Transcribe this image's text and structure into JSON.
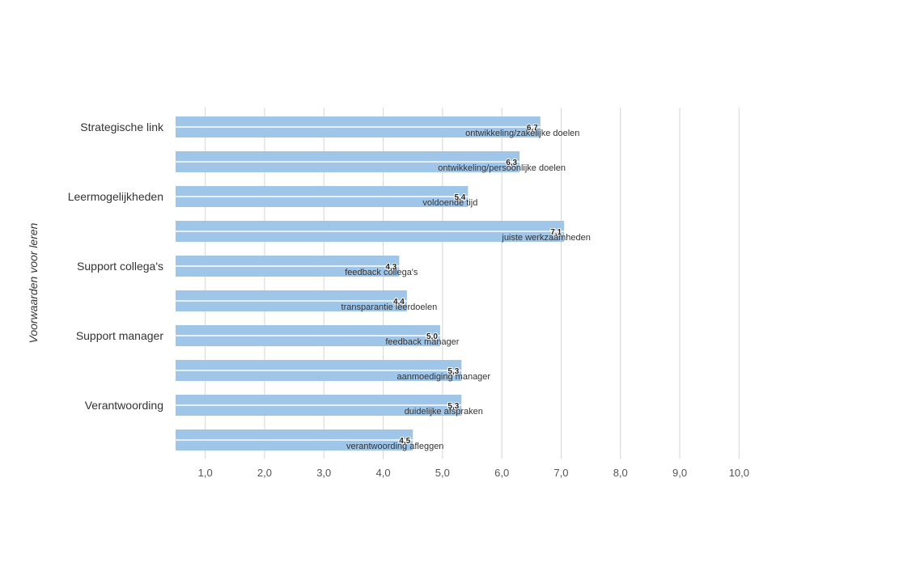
{
  "chart_data": {
    "type": "bar",
    "orientation": "horizontal",
    "ylabel": "Voorwaarden voor leren",
    "xlim": [
      0.5,
      10.0
    ],
    "x_ticks": [
      "1,0",
      "2,0",
      "3,0",
      "4,0",
      "5,0",
      "6,0",
      "7,0",
      "8,0",
      "9,0",
      "10,0"
    ],
    "x_tick_values": [
      1,
      2,
      3,
      4,
      5,
      6,
      7,
      8,
      9,
      10
    ],
    "grid": true,
    "groups": [
      {
        "label": "Strategische link",
        "bars": [
          0,
          1
        ]
      },
      {
        "label": "Leermogelijkheden",
        "bars": [
          2,
          3
        ]
      },
      {
        "label": "Support collega's",
        "bars": [
          4,
          5
        ]
      },
      {
        "label": "Support manager",
        "bars": [
          6,
          7
        ]
      },
      {
        "label": "Verantwoording",
        "bars": [
          8,
          9
        ]
      }
    ],
    "categories": [
      "ontwikkeling/zakelijke doelen",
      "ontwikkeling/persoonlijke doelen",
      "voldoende tijd",
      "juiste werkzaamheden",
      "feedback collega's",
      "transparantie leerdoelen",
      "feedback manager",
      "aanmoediging manager",
      "duidelijke afspraken",
      "verantwoording afleggen"
    ],
    "values": [
      6.65,
      6.3,
      5.43,
      7.05,
      4.27,
      4.4,
      4.96,
      5.32,
      5.32,
      4.5
    ],
    "value_labels": [
      "6,7",
      "6,3",
      "5,4",
      "7,1",
      "4,3",
      "4,4",
      "5,0",
      "5,3",
      "5,3",
      "4,5"
    ],
    "colors": {
      "bar": "#9fc5e8",
      "grid": "#d6d6d6"
    }
  }
}
